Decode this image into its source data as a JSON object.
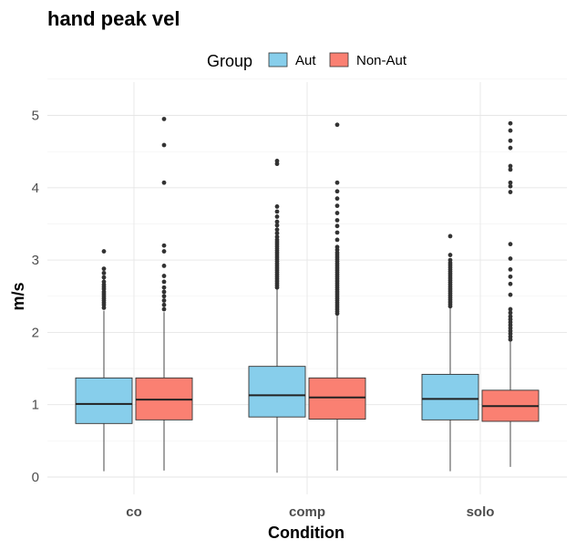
{
  "chart_data": {
    "type": "box",
    "title": "hand peak vel",
    "xlabel": "Condition",
    "ylabel": "m/s",
    "ylim": [
      -0.2,
      5.25
    ],
    "yticks": [
      0,
      1,
      2,
      3,
      4,
      5
    ],
    "categories": [
      "co",
      "comp",
      "solo"
    ],
    "grid": true,
    "legend": {
      "title": "Group",
      "position": "top",
      "items": [
        {
          "name": "Aut",
          "color": "#87CEEB"
        },
        {
          "name": "Non-Aut",
          "color": "#FA8072"
        }
      ]
    },
    "series": [
      {
        "name": "Aut",
        "color": "#87CEEB",
        "boxes": [
          {
            "category": "co",
            "lower_whisker": 0.08,
            "q1": 0.74,
            "median": 1.01,
            "q3": 1.37,
            "upper_whisker": 2.3,
            "outliers": [
              2.34,
              2.38,
              2.41,
              2.44,
              2.47,
              2.5,
              2.53,
              2.56,
              2.6,
              2.63,
              2.66,
              2.7,
              2.76,
              2.82,
              2.88,
              3.12
            ]
          },
          {
            "category": "comp",
            "lower_whisker": 0.06,
            "q1": 0.83,
            "median": 1.13,
            "q3": 1.53,
            "upper_whisker": 2.6,
            "outliers": [
              2.62,
              2.65,
              2.68,
              2.71,
              2.74,
              2.77,
              2.8,
              2.83,
              2.86,
              2.89,
              2.92,
              2.95,
              2.98,
              3.01,
              3.04,
              3.07,
              3.1,
              3.13,
              3.16,
              3.19,
              3.22,
              3.25,
              3.28,
              3.32,
              3.37,
              3.42,
              3.48,
              3.53,
              3.6,
              3.67,
              3.74,
              4.33,
              4.37
            ]
          },
          {
            "category": "solo",
            "lower_whisker": 0.08,
            "q1": 0.79,
            "median": 1.08,
            "q3": 1.42,
            "upper_whisker": 2.34,
            "outliers": [
              2.36,
              2.39,
              2.42,
              2.45,
              2.48,
              2.51,
              2.54,
              2.57,
              2.6,
              2.63,
              2.66,
              2.69,
              2.72,
              2.75,
              2.78,
              2.81,
              2.84,
              2.87,
              2.9,
              2.93,
              2.96,
              3.0,
              3.07,
              3.33
            ]
          }
        ]
      },
      {
        "name": "Non-Aut",
        "color": "#FA8072",
        "boxes": [
          {
            "category": "co",
            "lower_whisker": 0.09,
            "q1": 0.79,
            "median": 1.07,
            "q3": 1.37,
            "upper_whisker": 2.28,
            "outliers": [
              2.32,
              2.38,
              2.44,
              2.5,
              2.56,
              2.62,
              2.7,
              2.78,
              2.92,
              3.12,
              3.2,
              4.07,
              4.59,
              4.95
            ]
          },
          {
            "category": "comp",
            "lower_whisker": 0.09,
            "q1": 0.8,
            "median": 1.1,
            "q3": 1.37,
            "upper_whisker": 2.24,
            "outliers": [
              2.26,
              2.29,
              2.32,
              2.35,
              2.38,
              2.41,
              2.44,
              2.47,
              2.5,
              2.53,
              2.56,
              2.59,
              2.62,
              2.65,
              2.68,
              2.71,
              2.74,
              2.77,
              2.8,
              2.83,
              2.86,
              2.89,
              2.92,
              2.95,
              2.98,
              3.01,
              3.04,
              3.07,
              3.1,
              3.14,
              3.18,
              3.28,
              3.38,
              3.47,
              3.55,
              3.65,
              3.75,
              3.85,
              3.95,
              4.07,
              4.87
            ]
          },
          {
            "category": "solo",
            "lower_whisker": 0.14,
            "q1": 0.77,
            "median": 0.98,
            "q3": 1.2,
            "upper_whisker": 1.87,
            "outliers": [
              1.9,
              1.94,
              1.98,
              2.02,
              2.06,
              2.1,
              2.14,
              2.18,
              2.22,
              2.27,
              2.32,
              2.52,
              2.67,
              2.77,
              2.87,
              3.02,
              3.22,
              3.94,
              4.02,
              4.07,
              4.25,
              4.3,
              4.55,
              4.65,
              4.79,
              4.89
            ]
          }
        ]
      }
    ]
  }
}
